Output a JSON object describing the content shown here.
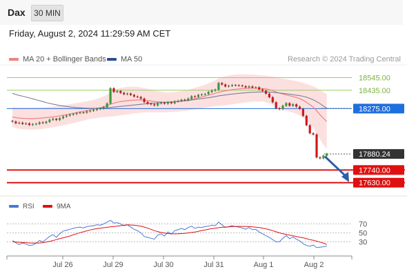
{
  "header": {
    "symbol": "Dax",
    "timeframe": "30 MIN",
    "datetime": "Friday, August 2, 2024 11:29:59 AM CET"
  },
  "legend": {
    "ma20": {
      "label": "MA 20 + Bollinger Bands",
      "color": "#f08080"
    },
    "ma50": {
      "label": "MA 50",
      "color": "#2f4f8f"
    },
    "credit": "Research © 2024 Trading Central"
  },
  "chart_data": {
    "type": "candlestick",
    "y_range": [
      17520,
      18650
    ],
    "levels": [
      {
        "label": "18545.00",
        "value": 18545,
        "kind": "target",
        "color": "#9ccc65"
      },
      {
        "label": "18435.00",
        "value": 18435,
        "kind": "target",
        "color": "#9ccc65"
      },
      {
        "label": "18275.00",
        "value": 18275,
        "kind": "pivot",
        "color": "#1e6fe0"
      },
      {
        "label": "17880.24",
        "value": 17880.24,
        "kind": "last",
        "color": "#333333"
      },
      {
        "label": "17740.00",
        "value": 17740,
        "kind": "support",
        "color": "#e01010"
      },
      {
        "label": "17630.00",
        "value": 17630,
        "kind": "support",
        "color": "#e01010"
      }
    ],
    "x_labels": [
      "Jul 26",
      "Jul 29",
      "Jul 30",
      "Jul 31",
      "Aug 1",
      "Aug 2"
    ],
    "close": [
      18162,
      18148,
      18152,
      18142,
      18146,
      18133,
      18139,
      18142,
      18155,
      18150,
      18160,
      18178,
      18186,
      18176,
      18192,
      18205,
      18214,
      18222,
      18228,
      18236,
      18241,
      18240,
      18251,
      18256,
      18264,
      18272,
      18276,
      18288,
      18320,
      18452,
      18420,
      18428,
      18412,
      18400,
      18406,
      18394,
      18380,
      18376,
      18362,
      18332,
      18318,
      18312,
      18303,
      18320,
      18326,
      18318,
      18330,
      18322,
      18338,
      18343,
      18352,
      18348,
      18362,
      18382,
      18378,
      18394,
      18398,
      18402,
      18420,
      18432,
      18440,
      18498,
      18485,
      18468,
      18473,
      18480,
      18478,
      18476,
      18470,
      18460,
      18468,
      18458,
      18460,
      18442,
      18430,
      18405,
      18374,
      18330,
      18278,
      18270,
      18300,
      18322,
      18300,
      18312,
      18292,
      18272,
      18212,
      18130,
      18060,
      18050,
      17850,
      17842,
      17865,
      17880
    ],
    "ma20": [
      18202,
      18196,
      18192,
      18190,
      18189,
      18188,
      18188,
      18189,
      18191,
      18193,
      18196,
      18199,
      18203,
      18207,
      18212,
      18217,
      18222,
      18228,
      18234,
      18240,
      18246,
      18252,
      18258,
      18264,
      18270,
      18276,
      18283,
      18291,
      18300,
      18314,
      18322,
      18330,
      18336,
      18340,
      18344,
      18347,
      18349,
      18350,
      18350,
      18348,
      18345,
      18341,
      18337,
      18334,
      18332,
      18330,
      18330,
      18331,
      18333,
      18336,
      18340,
      18344,
      18349,
      18355,
      18362,
      18369,
      18376,
      18384,
      18392,
      18400,
      18408,
      18418,
      18424,
      18430,
      18435,
      18440,
      18444,
      18447,
      18449,
      18451,
      18452,
      18453,
      18453,
      18452,
      18450,
      18446,
      18440,
      18432,
      18420,
      18410,
      18402,
      18395,
      18387,
      18380,
      18372,
      18362,
      18348,
      18330,
      18309,
      18288,
      18255,
      18222,
      18190,
      18162
    ],
    "ma50": [
      18408,
      18398,
      18390,
      18383,
      18376,
      18368,
      18360,
      18352,
      18344,
      18336,
      18328,
      18320,
      18314,
      18308,
      18302,
      18298,
      18294,
      18290,
      18287,
      18284,
      18282,
      18280,
      18279,
      18278,
      18278,
      18278,
      18279,
      18280,
      18282,
      18285,
      18288,
      18291,
      18294,
      18297,
      18300,
      18303,
      18306,
      18309,
      18312,
      18315,
      18318,
      18321,
      18323,
      18325,
      18327,
      18329,
      18331,
      18333,
      18335,
      18337,
      18340,
      18343,
      18346,
      18350,
      18354,
      18358,
      18362,
      18366,
      18370,
      18375,
      18380,
      18386,
      18390,
      18394,
      18398,
      18402,
      18405,
      18408,
      18411,
      18413,
      18415,
      18417,
      18418,
      18419,
      18420,
      18420,
      18419,
      18417,
      18414,
      18411,
      18408,
      18404,
      18400,
      18396,
      18392,
      18388,
      18382,
      18374,
      18364,
      18352,
      18336,
      18318,
      18298,
      18278
    ],
    "bb_width": [
      88,
      90,
      92,
      94,
      94,
      96,
      96,
      96,
      94,
      94,
      92,
      92,
      90,
      90,
      88,
      88,
      86,
      86,
      84,
      84,
      82,
      82,
      80,
      80,
      82,
      84,
      86,
      90,
      96,
      108,
      114,
      118,
      120,
      120,
      120,
      118,
      116,
      114,
      110,
      106,
      102,
      98,
      94,
      92,
      90,
      88,
      86,
      86,
      86,
      88,
      88,
      90,
      90,
      92,
      94,
      96,
      98,
      100,
      104,
      108,
      112,
      120,
      124,
      126,
      128,
      128,
      128,
      126,
      124,
      122,
      120,
      118,
      116,
      114,
      114,
      116,
      118,
      122,
      128,
      132,
      134,
      136,
      138,
      140,
      142,
      146,
      152,
      160,
      170,
      180,
      200,
      215,
      228,
      240
    ],
    "rsi": {
      "label": "RSI",
      "color": "#4a78d6",
      "y_range": [
        0,
        100
      ],
      "ticks": [
        30,
        50,
        70
      ],
      "values": [
        33,
        28,
        24,
        27,
        25,
        22,
        23,
        27,
        33,
        30,
        36,
        42,
        46,
        40,
        48,
        54,
        56,
        58,
        60,
        62,
        63,
        61,
        64,
        65,
        66,
        68,
        67,
        70,
        74,
        78,
        72,
        73,
        70,
        66,
        68,
        63,
        58,
        55,
        50,
        42,
        40,
        38,
        36,
        45,
        48,
        43,
        52,
        47,
        55,
        57,
        60,
        57,
        62,
        65,
        60,
        63,
        62,
        64,
        65,
        67,
        66,
        74,
        68,
        62,
        64,
        66,
        64,
        63,
        61,
        58,
        62,
        57,
        58,
        52,
        48,
        44,
        40,
        35,
        30,
        30,
        38,
        44,
        37,
        41,
        36,
        32,
        26,
        22,
        20,
        23,
        17,
        18,
        19,
        21
      ],
      "ma9_label": "9MA",
      "ma9_color": "#e01010",
      "ma9": [
        30,
        29.5,
        29,
        28.5,
        28,
        27.5,
        27.2,
        27,
        27.5,
        28.2,
        29.5,
        31,
        33,
        35,
        37,
        39,
        41,
        43,
        45.5,
        48,
        50.5,
        52.5,
        54.5,
        56.5,
        58,
        59.5,
        60.5,
        61.5,
        62.5,
        63.5,
        64.3,
        65,
        66,
        67,
        68,
        67.5,
        67,
        66,
        65,
        63,
        60.5,
        58,
        55,
        53,
        51,
        49.5,
        48.5,
        48,
        47.8,
        48,
        48.5,
        49,
        50,
        51,
        52,
        53.5,
        55,
        56.5,
        58,
        59.5,
        60.5,
        61.5,
        62.5,
        63,
        63.5,
        64,
        64.2,
        64.4,
        64.5,
        64.3,
        64,
        63.4,
        62.8,
        61.8,
        60.5,
        59,
        57,
        55,
        52.5,
        50,
        48,
        46.5,
        45,
        43.5,
        42,
        40.5,
        39,
        37,
        35,
        33.5,
        31.5,
        29.5,
        27,
        24.5
      ]
    }
  }
}
